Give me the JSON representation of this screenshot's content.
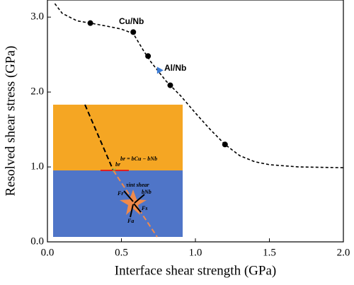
{
  "chart_data": {
    "type": "scatter",
    "x_label": "Interface shear strength (GPa)",
    "y_label": "Resolved shear stress (GPa)",
    "xlim": [
      0,
      2.0
    ],
    "ylim": [
      0,
      3.2
    ],
    "xticks": [
      {
        "value": 0,
        "label": "0.0"
      },
      {
        "value": 0.5,
        "label": "0.5"
      },
      {
        "value": 1.0,
        "label": "1.0"
      },
      {
        "value": 1.5,
        "label": "1.5"
      },
      {
        "value": 2.0,
        "label": "2.0"
      }
    ],
    "yticks": [
      {
        "value": 0,
        "label": "0.0"
      },
      {
        "value": 1.0,
        "label": "1.0"
      },
      {
        "value": 2.0,
        "label": "2.0"
      },
      {
        "value": 3.0,
        "label": "3.0"
      }
    ],
    "series": [
      {
        "style": "dashed-line",
        "color": "#000000",
        "x": [
          0.05,
          0.1,
          0.2,
          0.29,
          0.4,
          0.5,
          0.58,
          0.65,
          0.7,
          0.8,
          0.9,
          1.0,
          1.1,
          1.2,
          1.3,
          1.4,
          1.5,
          1.7,
          2.0
        ],
        "values": [
          3.18,
          3.05,
          2.95,
          2.92,
          2.88,
          2.84,
          2.78,
          2.55,
          2.4,
          2.15,
          1.95,
          1.72,
          1.5,
          1.3,
          1.15,
          1.07,
          1.03,
          1.0,
          0.99
        ]
      },
      {
        "style": "circle",
        "color": "#000000",
        "x": [
          0.29,
          0.58,
          0.68,
          0.83,
          1.2
        ],
        "values": [
          2.92,
          2.8,
          2.48,
          2.09,
          1.3
        ]
      },
      {
        "style": "triangle",
        "color": "#3a7bd5",
        "x": [
          0.76
        ],
        "values": [
          2.29
        ]
      }
    ],
    "annotations": [
      "Cu/Nb",
      "Al/Nb"
    ],
    "inset_labels": [
      "br = bCu − bNb",
      "br",
      "τint shear",
      "bNb",
      "Fr",
      "Fs",
      "Fa"
    ]
  }
}
